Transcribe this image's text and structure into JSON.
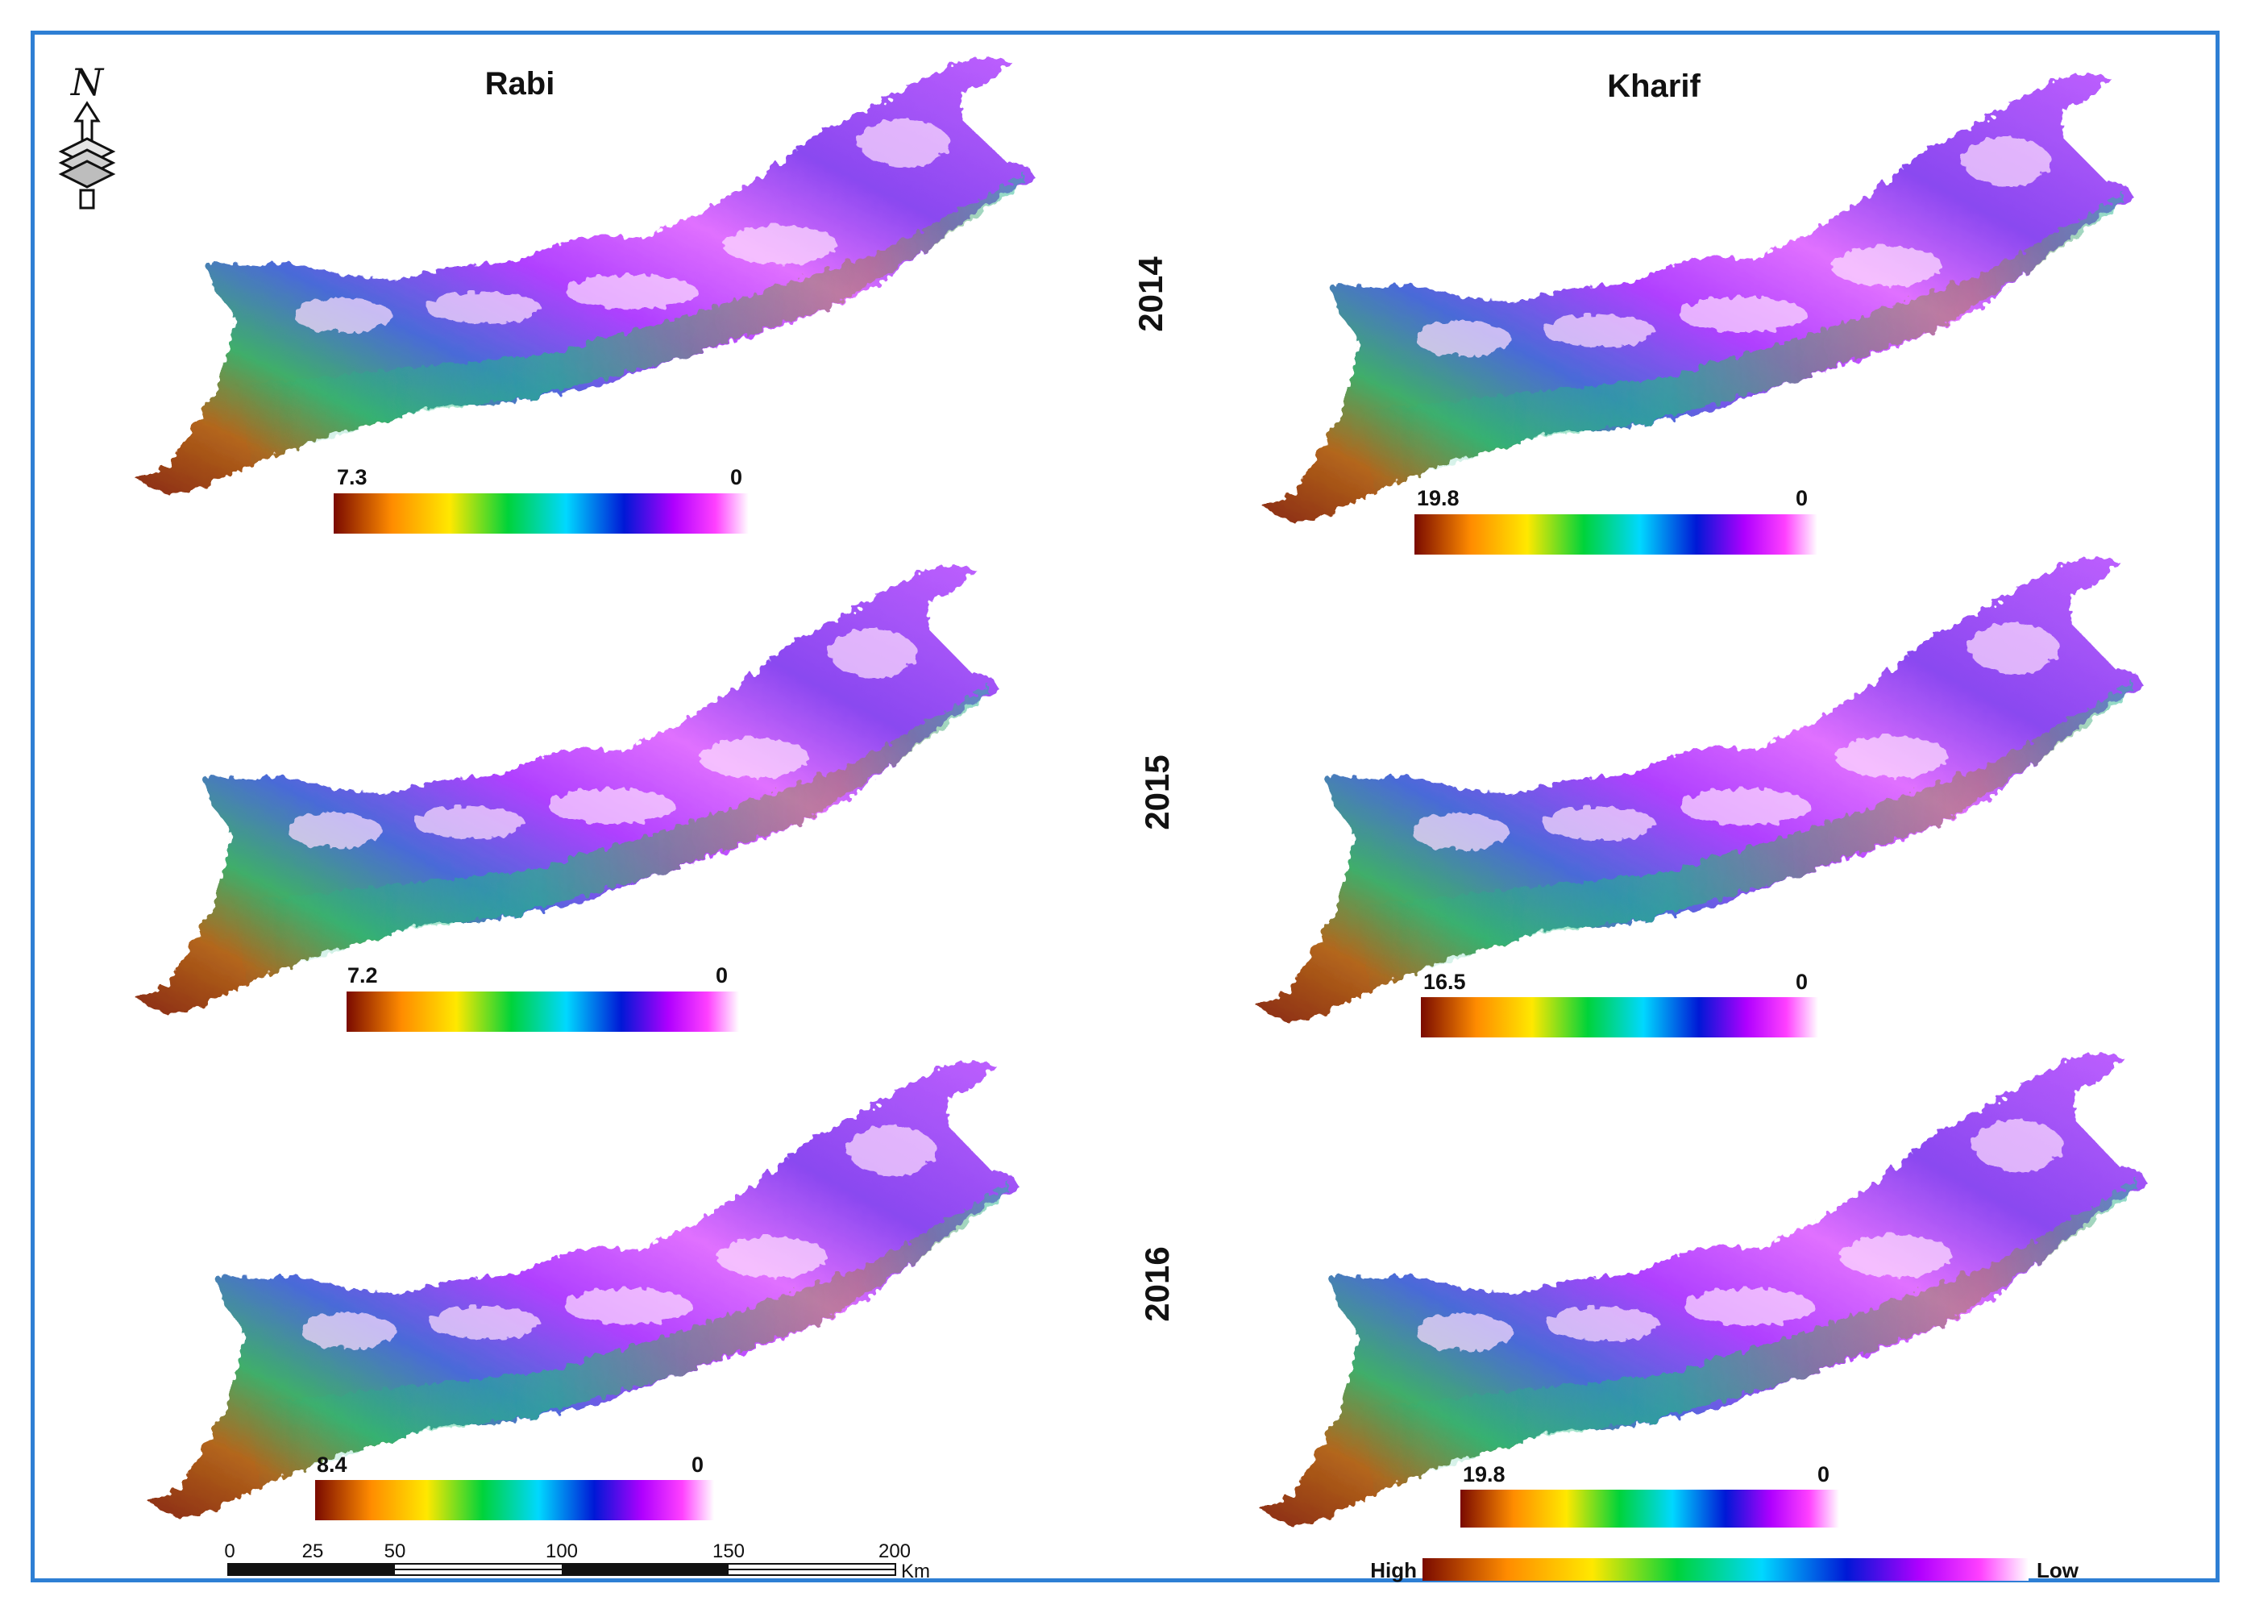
{
  "columns": {
    "rabi": "Rabi",
    "kharif": "Kharif"
  },
  "years": [
    "2014",
    "2015",
    "2016"
  ],
  "north_arrow": {
    "label": "N"
  },
  "panels": [
    {
      "season": "Rabi",
      "year": "2014",
      "legend_max": "7.3",
      "legend_min": "0"
    },
    {
      "season": "Kharif",
      "year": "2014",
      "legend_max": "19.8",
      "legend_min": "0"
    },
    {
      "season": "Rabi",
      "year": "2015",
      "legend_max": "7.2",
      "legend_min": "0"
    },
    {
      "season": "Kharif",
      "year": "2015",
      "legend_max": "16.5",
      "legend_min": "0"
    },
    {
      "season": "Rabi",
      "year": "2016",
      "legend_max": "8.4",
      "legend_min": "0"
    },
    {
      "season": "Kharif",
      "year": "2016",
      "legend_max": "19.8",
      "legend_min": "0"
    }
  ],
  "scale_bar": {
    "ticks": [
      "0",
      "25",
      "50",
      "100",
      "150",
      "200"
    ],
    "unit": "Km"
  },
  "main_legend": {
    "high": "High",
    "low": "Low"
  },
  "colors": {
    "frame": "#2e7fd4",
    "ramp": [
      "#7a0a00",
      "#ff8c00",
      "#ffe800",
      "#00d33a",
      "#00d8ff",
      "#0018d6",
      "#b000ff",
      "#ff40ff",
      "#ffffff"
    ]
  }
}
